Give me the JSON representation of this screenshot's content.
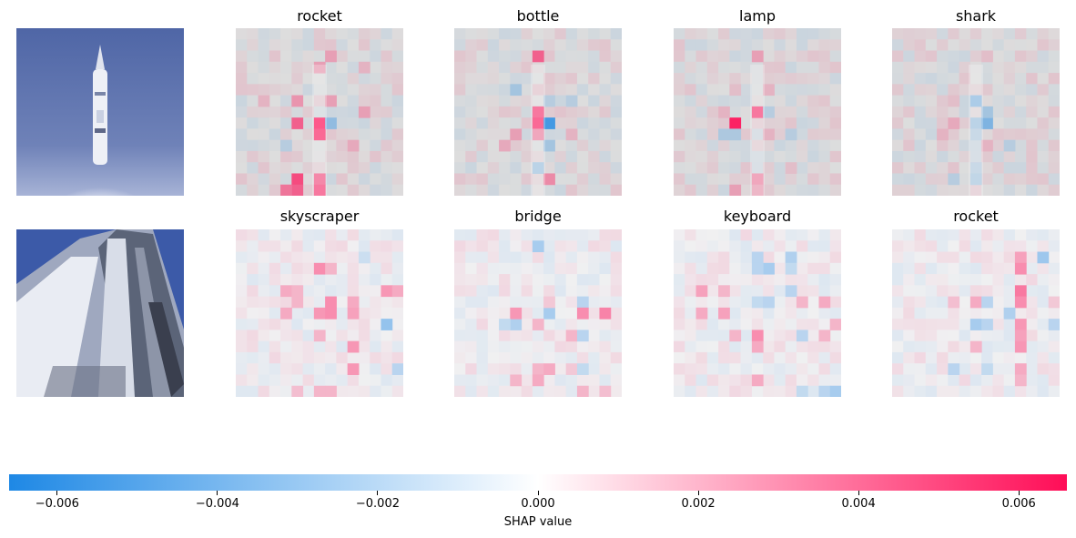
{
  "chart_data": {
    "type": "heatmap",
    "description_source": "SHAP image explanation grid",
    "rows": [
      {
        "input": "rocket-launch-photo",
        "panels": [
          {
            "title": "rocket",
            "hotspots": [
              [
                3,
                6,
                0.9
              ],
              [
                3,
                7,
                0.8
              ],
              [
                2,
                6,
                0.6
              ],
              [
                4,
                6,
                -0.4
              ],
              [
                2,
                10,
                0.7
              ],
              [
                3,
                10,
                0.6
              ],
              [
                3,
                11,
                0.7
              ],
              [
                2,
                11,
                0.6
              ],
              [
                1,
                11,
                0.5
              ],
              [
                4,
                1,
                0.3
              ],
              [
                6,
                5,
                0.3
              ],
              [
                2,
                4,
                0.35
              ],
              [
                4,
                4,
                0.3
              ],
              [
                5,
                8,
                0.25
              ],
              [
                1,
                8,
                -0.2
              ],
              [
                0,
                4,
                0.2
              ],
              [
                6,
                2,
                0.2
              ],
              [
                3,
                2,
                0.3
              ]
            ]
          },
          {
            "title": "bottle",
            "hotspots": [
              [
                3,
                5,
                0.7
              ],
              [
                3,
                6,
                0.8
              ],
              [
                4,
                6,
                -0.8
              ],
              [
                3,
                1,
                0.6
              ],
              [
                2,
                3,
                -0.3
              ],
              [
                5,
                4,
                -0.2
              ],
              [
                4,
                8,
                -0.3
              ],
              [
                3,
                9,
                -0.3
              ],
              [
                4,
                10,
                0.4
              ],
              [
                3,
                7,
                0.4
              ],
              [
                2,
                7,
                0.3
              ],
              [
                1,
                8,
                0.25
              ],
              [
                4,
                4,
                -0.2
              ],
              [
                5,
                7,
                0.2
              ]
            ]
          },
          {
            "title": "lamp",
            "hotspots": [
              [
                2,
                6,
                0.9
              ],
              [
                3,
                5,
                0.7
              ],
              [
                4,
                5,
                -0.2
              ],
              [
                1,
                7,
                -0.25
              ],
              [
                2,
                7,
                -0.25
              ],
              [
                5,
                7,
                -0.2
              ],
              [
                4,
                7,
                0.2
              ],
              [
                3,
                10,
                0.4
              ],
              [
                2,
                11,
                0.3
              ],
              [
                3,
                11,
                0.3
              ],
              [
                1,
                5,
                0.2
              ],
              [
                3,
                1,
                0.3
              ],
              [
                4,
                3,
                0.2
              ],
              [
                2,
                3,
                0.15
              ],
              [
                5,
                9,
                0.15
              ]
            ]
          },
          {
            "title": "shark",
            "hotspots": [
              [
                3,
                4,
                -0.4
              ],
              [
                3,
                6,
                -0.3
              ],
              [
                4,
                6,
                -0.5
              ],
              [
                4,
                5,
                -0.3
              ],
              [
                2,
                6,
                0.25
              ],
              [
                3,
                7,
                -0.2
              ],
              [
                5,
                8,
                -0.2
              ],
              [
                3,
                9,
                -0.2
              ],
              [
                2,
                10,
                -0.2
              ],
              [
                3,
                10,
                -0.25
              ],
              [
                1,
                7,
                0.2
              ],
              [
                4,
                8,
                0.2
              ],
              [
                2,
                4,
                0.15
              ],
              [
                4,
                1,
                0.15
              ]
            ]
          }
        ]
      },
      {
        "input": "skyscraper-photo",
        "panels": [
          {
            "title": "skyscraper",
            "hotspots": [
              [
                3,
                2,
                0.5
              ],
              [
                4,
                2,
                0.3
              ],
              [
                1,
                3,
                0.35
              ],
              [
                2,
                3,
                0.3
              ],
              [
                7,
                3,
                0.45
              ],
              [
                8,
                3,
                0.35
              ],
              [
                2,
                4,
                0.3
              ],
              [
                4,
                4,
                0.5
              ],
              [
                5,
                4,
                0.35
              ],
              [
                3,
                5,
                0.45
              ],
              [
                4,
                5,
                0.5
              ],
              [
                5,
                5,
                0.4
              ],
              [
                1,
                5,
                0.35
              ],
              [
                7,
                6,
                -0.5
              ],
              [
                3,
                7,
                0.3
              ],
              [
                5,
                8,
                0.45
              ],
              [
                5,
                9,
                0.45
              ],
              [
                4,
                11,
                0.3
              ],
              [
                3,
                11,
                0.3
              ],
              [
                2,
                11,
                0.25
              ],
              [
                8,
                9,
                -0.3
              ],
              [
                6,
                1,
                -0.2
              ]
            ]
          },
          {
            "title": "bridge",
            "hotspots": [
              [
                3,
                0,
                -0.4
              ],
              [
                6,
                4,
                -0.3
              ],
              [
                4,
                5,
                -0.4
              ],
              [
                3,
                6,
                0.3
              ],
              [
                2,
                6,
                -0.35
              ],
              [
                6,
                5,
                0.5
              ],
              [
                7,
                5,
                0.55
              ],
              [
                2,
                5,
                0.45
              ],
              [
                4,
                4,
                0.2
              ],
              [
                1,
                6,
                -0.25
              ],
              [
                5,
                7,
                0.3
              ],
              [
                6,
                7,
                -0.3
              ],
              [
                3,
                9,
                0.3
              ],
              [
                4,
                9,
                0.35
              ],
              [
                5,
                9,
                0.2
              ],
              [
                6,
                9,
                -0.25
              ],
              [
                2,
                10,
                0.3
              ],
              [
                3,
                10,
                0.35
              ],
              [
                6,
                11,
                0.3
              ],
              [
                7,
                11,
                0.25
              ]
            ]
          },
          {
            "title": "keyboard",
            "hotspots": [
              [
                3,
                1,
                -0.3
              ],
              [
                5,
                1,
                -0.35
              ],
              [
                4,
                2,
                -0.4
              ],
              [
                3,
                2,
                -0.3
              ],
              [
                5,
                2,
                -0.25
              ],
              [
                0,
                3,
                0.4
              ],
              [
                1,
                3,
                0.3
              ],
              [
                5,
                3,
                -0.3
              ],
              [
                3,
                4,
                -0.25
              ],
              [
                4,
                4,
                -0.3
              ],
              [
                6,
                4,
                0.3
              ],
              [
                7,
                4,
                0.35
              ],
              [
                0,
                5,
                0.35
              ],
              [
                1,
                5,
                0.4
              ],
              [
                3,
                7,
                0.5
              ],
              [
                2,
                7,
                0.3
              ],
              [
                3,
                8,
                0.35
              ],
              [
                6,
                7,
                -0.3
              ],
              [
                7,
                7,
                0.3
              ],
              [
                8,
                6,
                0.3
              ],
              [
                3,
                10,
                0.35
              ],
              [
                7,
                11,
                -0.3
              ],
              [
                8,
                11,
                -0.4
              ],
              [
                6,
                11,
                -0.25
              ]
            ]
          },
          {
            "title": "rocket",
            "hotspots": [
              [
                7,
                1,
                -0.45
              ],
              [
                6,
                1,
                0.4
              ],
              [
                6,
                2,
                0.5
              ],
              [
                6,
                3,
                0.6
              ],
              [
                6,
                4,
                0.5
              ],
              [
                3,
                4,
                0.35
              ],
              [
                4,
                4,
                -0.3
              ],
              [
                5,
                5,
                -0.35
              ],
              [
                6,
                6,
                0.45
              ],
              [
                3,
                6,
                -0.4
              ],
              [
                4,
                6,
                -0.3
              ],
              [
                8,
                6,
                -0.3
              ],
              [
                9,
                6,
                -0.35
              ],
              [
                6,
                7,
                0.4
              ],
              [
                3,
                8,
                0.3
              ],
              [
                6,
                8,
                0.45
              ],
              [
                6,
                9,
                0.35
              ],
              [
                2,
                9,
                -0.3
              ],
              [
                4,
                9,
                -0.25
              ],
              [
                6,
                10,
                0.3
              ],
              [
                2,
                4,
                0.25
              ],
              [
                8,
                4,
                0.2
              ]
            ]
          }
        ]
      }
    ],
    "colorbar": {
      "label": "SHAP value",
      "min": -0.0066,
      "max": 0.0066,
      "ticks": [
        -0.006,
        -0.004,
        -0.002,
        0.0,
        0.002,
        0.004,
        0.006
      ],
      "tick_labels": [
        "−0.006",
        "−0.004",
        "−0.002",
        "0.000",
        "0.002",
        "0.004",
        "0.006"
      ],
      "colors": {
        "negative": "#1e88e5",
        "zero": "#ffffff",
        "positive": "#ff0d57"
      }
    }
  }
}
